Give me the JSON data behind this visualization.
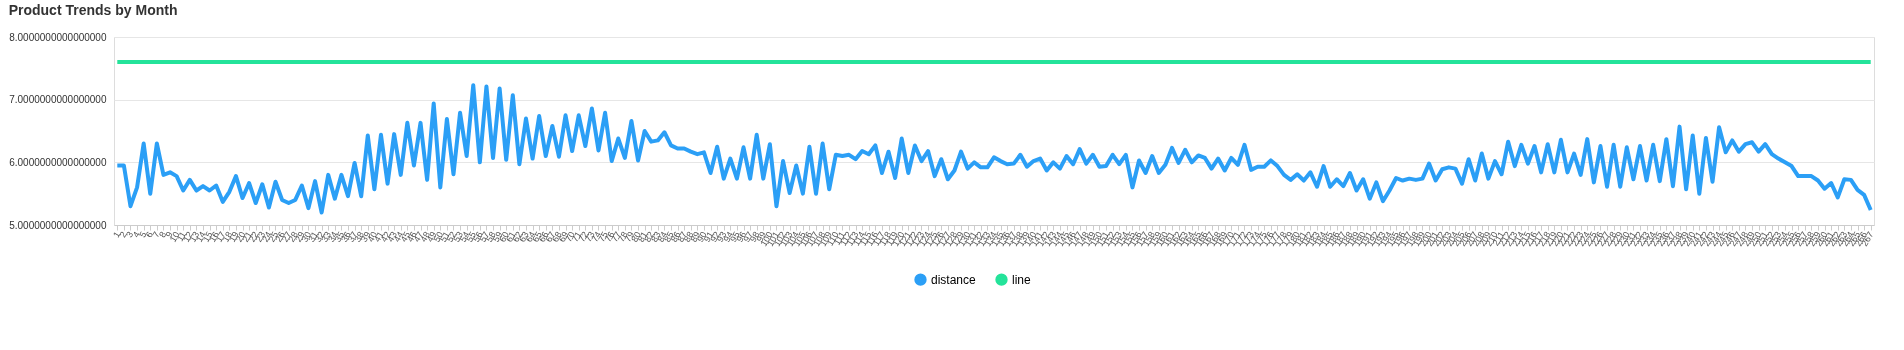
{
  "chart_data": {
    "type": "line",
    "title": "Product Trends by Month",
    "categories": [
      "1",
      "2",
      "3",
      "4",
      "5",
      "6",
      "7",
      "8",
      "9",
      "10",
      "11",
      "12",
      "13",
      "14",
      "15",
      "16",
      "17",
      "18",
      "19",
      "20",
      "21",
      "22",
      "23",
      "24",
      "25",
      "26",
      "27",
      "28",
      "29",
      "30",
      "31",
      "32",
      "33",
      "34",
      "35",
      "36",
      "37",
      "38",
      "39",
      "40",
      "41",
      "42",
      "43",
      "44",
      "45",
      "46",
      "47",
      "48",
      "49",
      "50",
      "51",
      "52",
      "53",
      "54",
      "55",
      "56",
      "57",
      "58",
      "59",
      "60",
      "61",
      "62",
      "63",
      "64",
      "65",
      "66",
      "67",
      "68",
      "69",
      "70",
      "71",
      "72",
      "73",
      "74",
      "75",
      "76",
      "77",
      "78",
      "79",
      "80",
      "81",
      "82",
      "83",
      "84",
      "85",
      "86",
      "87",
      "88",
      "89",
      "90",
      "91",
      "92",
      "93",
      "94",
      "95",
      "96",
      "97",
      "98",
      "99",
      "100",
      "101",
      "102",
      "103",
      "104",
      "105",
      "106",
      "107",
      "108",
      "109",
      "110",
      "111",
      "112",
      "113",
      "114",
      "115",
      "116",
      "117",
      "118",
      "119",
      "120",
      "121",
      "122",
      "123",
      "124",
      "125",
      "126",
      "127",
      "128",
      "129",
      "130",
      "131",
      "132",
      "133",
      "134",
      "135",
      "136",
      "137",
      "138",
      "139",
      "140",
      "141",
      "142",
      "143",
      "144",
      "145",
      "146",
      "147",
      "148",
      "149",
      "150",
      "151",
      "152",
      "153",
      "154",
      "155",
      "156",
      "157",
      "158",
      "159",
      "160",
      "161",
      "162",
      "163",
      "164",
      "165",
      "166",
      "167",
      "168",
      "169",
      "170",
      "171",
      "172",
      "173",
      "174",
      "175",
      "176",
      "177",
      "178",
      "179",
      "180",
      "181",
      "182",
      "183",
      "184",
      "185",
      "186",
      "187",
      "188",
      "189",
      "190",
      "191",
      "192",
      "193",
      "194",
      "195",
      "196",
      "197",
      "198",
      "199",
      "200",
      "201",
      "202",
      "203",
      "204",
      "205",
      "206",
      "207",
      "208",
      "209",
      "210",
      "211",
      "212",
      "213",
      "214",
      "215",
      "216",
      "217",
      "218",
      "219",
      "220",
      "221",
      "222",
      "223",
      "224",
      "225",
      "226",
      "227",
      "228",
      "229",
      "230",
      "231",
      "232",
      "233",
      "234",
      "235",
      "236",
      "237",
      "238",
      "239",
      "240",
      "241",
      "242",
      "243",
      "244",
      "245",
      "246",
      "247",
      "248",
      "249",
      "250",
      "251",
      "252",
      "253",
      "254",
      "255",
      "256",
      "257",
      "258",
      "259",
      "260",
      "261",
      "262",
      "263",
      "264",
      "265",
      "266",
      "267"
    ],
    "series": [
      {
        "name": "distance",
        "color": "#2b9ff6",
        "values": [
          5.95,
          5.95,
          5.3,
          5.6,
          6.3,
          5.5,
          6.3,
          5.8,
          5.84,
          5.78,
          5.55,
          5.72,
          5.55,
          5.62,
          5.55,
          5.63,
          5.37,
          5.53,
          5.78,
          5.43,
          5.67,
          5.35,
          5.65,
          5.28,
          5.69,
          5.4,
          5.35,
          5.4,
          5.63,
          5.27,
          5.7,
          5.2,
          5.8,
          5.42,
          5.8,
          5.46,
          5.99,
          5.46,
          6.43,
          5.57,
          6.44,
          5.66,
          6.45,
          5.8,
          6.63,
          5.95,
          6.63,
          5.72,
          6.94,
          5.6,
          6.69,
          5.81,
          6.79,
          6.1,
          7.23,
          6.0,
          7.21,
          6.07,
          7.18,
          6.04,
          7.07,
          5.97,
          6.7,
          6.06,
          6.74,
          6.1,
          6.58,
          6.09,
          6.75,
          6.18,
          6.75,
          6.26,
          6.86,
          6.19,
          6.79,
          6.02,
          6.38,
          6.07,
          6.66,
          6.03,
          6.5,
          6.33,
          6.35,
          6.48,
          6.27,
          6.22,
          6.22,
          6.17,
          6.13,
          6.16,
          5.83,
          6.25,
          5.74,
          6.06,
          5.74,
          6.24,
          5.74,
          6.44,
          5.74,
          6.29,
          5.3,
          6.02,
          5.51,
          5.95,
          5.5,
          6.25,
          5.5,
          6.3,
          5.57,
          6.12,
          6.1,
          6.12,
          6.05,
          6.18,
          6.13,
          6.27,
          5.83,
          6.17,
          5.75,
          6.38,
          5.83,
          6.27,
          6.02,
          6.18,
          5.78,
          6.05,
          5.73,
          5.87,
          6.17,
          5.9,
          6.0,
          5.92,
          5.92,
          6.08,
          6.02,
          5.97,
          5.98,
          6.12,
          5.93,
          6.02,
          6.06,
          5.87,
          6.0,
          5.9,
          6.1,
          5.97,
          6.21,
          5.98,
          6.12,
          5.93,
          5.94,
          6.12,
          5.97,
          6.12,
          5.6,
          6.03,
          5.83,
          6.1,
          5.83,
          5.96,
          6.23,
          5.99,
          6.2,
          6.0,
          6.11,
          6.07,
          5.9,
          6.06,
          5.87,
          6.07,
          5.96,
          6.28,
          5.88,
          5.93,
          5.93,
          6.03,
          5.94,
          5.8,
          5.72,
          5.81,
          5.71,
          5.84,
          5.61,
          5.94,
          5.61,
          5.73,
          5.62,
          5.83,
          5.55,
          5.73,
          5.42,
          5.68,
          5.38,
          5.55,
          5.75,
          5.71,
          5.74,
          5.72,
          5.74,
          5.98,
          5.71,
          5.89,
          5.92,
          5.9,
          5.66,
          6.05,
          5.71,
          6.14,
          5.74,
          6.02,
          5.81,
          6.33,
          5.94,
          6.28,
          5.98,
          6.26,
          5.84,
          6.29,
          5.84,
          6.36,
          5.84,
          6.14,
          5.8,
          6.37,
          5.68,
          6.26,
          5.61,
          6.28,
          5.61,
          6.24,
          5.73,
          6.26,
          5.71,
          6.28,
          5.7,
          6.37,
          5.62,
          6.57,
          5.57,
          6.43,
          5.5,
          6.39,
          5.69,
          6.56,
          6.16,
          6.35,
          6.17,
          6.29,
          6.32,
          6.17,
          6.29,
          6.13,
          6.06,
          6.0,
          5.94,
          5.78,
          5.78,
          5.78,
          5.71,
          5.58,
          5.67,
          5.44,
          5.73,
          5.72,
          5.56,
          5.48,
          5.24
        ]
      },
      {
        "name": "line",
        "color": "#24e39a",
        "values": [
          7.6,
          7.6,
          7.6,
          7.6,
          7.6,
          7.6,
          7.6,
          7.6,
          7.6,
          7.6,
          7.6,
          7.6,
          7.6,
          7.6,
          7.6,
          7.6,
          7.6,
          7.6,
          7.6,
          7.6,
          7.6,
          7.6,
          7.6,
          7.6,
          7.6,
          7.6,
          7.6,
          7.6,
          7.6,
          7.6,
          7.6,
          7.6,
          7.6,
          7.6,
          7.6,
          7.6,
          7.6,
          7.6,
          7.6,
          7.6,
          7.6,
          7.6,
          7.6,
          7.6,
          7.6,
          7.6,
          7.6,
          7.6,
          7.6,
          7.6,
          7.6,
          7.6,
          7.6,
          7.6,
          7.6,
          7.6,
          7.6,
          7.6,
          7.6,
          7.6,
          7.6,
          7.6,
          7.6,
          7.6,
          7.6,
          7.6,
          7.6,
          7.6,
          7.6,
          7.6,
          7.6,
          7.6,
          7.6,
          7.6,
          7.6,
          7.6,
          7.6,
          7.6,
          7.6,
          7.6,
          7.6,
          7.6,
          7.6,
          7.6,
          7.6,
          7.6,
          7.6,
          7.6,
          7.6,
          7.6,
          7.6,
          7.6,
          7.6,
          7.6,
          7.6,
          7.6,
          7.6,
          7.6,
          7.6,
          7.6,
          7.6,
          7.6,
          7.6,
          7.6,
          7.6,
          7.6,
          7.6,
          7.6,
          7.6,
          7.6,
          7.6,
          7.6,
          7.6,
          7.6,
          7.6,
          7.6,
          7.6,
          7.6,
          7.6,
          7.6,
          7.6,
          7.6,
          7.6,
          7.6,
          7.6,
          7.6,
          7.6,
          7.6,
          7.6,
          7.6,
          7.6,
          7.6,
          7.6,
          7.6,
          7.6,
          7.6,
          7.6,
          7.6,
          7.6,
          7.6,
          7.6,
          7.6,
          7.6,
          7.6,
          7.6,
          7.6,
          7.6,
          7.6,
          7.6,
          7.6,
          7.6,
          7.6,
          7.6,
          7.6,
          7.6,
          7.6,
          7.6,
          7.6,
          7.6,
          7.6,
          7.6,
          7.6,
          7.6,
          7.6,
          7.6,
          7.6,
          7.6,
          7.6,
          7.6,
          7.6,
          7.6,
          7.6,
          7.6,
          7.6,
          7.6,
          7.6,
          7.6,
          7.6,
          7.6,
          7.6,
          7.6,
          7.6,
          7.6,
          7.6,
          7.6,
          7.6,
          7.6,
          7.6,
          7.6,
          7.6,
          7.6,
          7.6,
          7.6,
          7.6,
          7.6,
          7.6,
          7.6,
          7.6,
          7.6,
          7.6,
          7.6,
          7.6,
          7.6,
          7.6,
          7.6,
          7.6,
          7.6,
          7.6,
          7.6,
          7.6,
          7.6,
          7.6,
          7.6,
          7.6,
          7.6,
          7.6,
          7.6,
          7.6,
          7.6,
          7.6,
          7.6,
          7.6,
          7.6,
          7.6,
          7.6,
          7.6,
          7.6,
          7.6,
          7.6,
          7.6,
          7.6,
          7.6,
          7.6,
          7.6,
          7.6,
          7.6,
          7.6,
          7.6,
          7.6,
          7.6,
          7.6,
          7.6,
          7.6,
          7.6,
          7.6,
          7.6,
          7.6,
          7.6,
          7.6,
          7.6,
          7.6,
          7.6,
          7.6,
          7.6,
          7.6,
          7.6,
          7.6,
          7.6,
          7.6,
          7.6,
          7.6,
          7.6,
          7.6,
          7.6,
          7.6,
          7.6,
          7.6
        ]
      }
    ],
    "ylim": [
      5,
      8
    ],
    "yticks": [
      {
        "value": 5,
        "label": "5.0000000000000000"
      },
      {
        "value": 6,
        "label": "6.0000000000000000"
      },
      {
        "value": 7,
        "label": "7.0000000000000000"
      },
      {
        "value": 8,
        "label": "8.0000000000000000"
      }
    ],
    "grid": "y",
    "legend": "bottom",
    "marker": "none",
    "line_style": "solid"
  }
}
